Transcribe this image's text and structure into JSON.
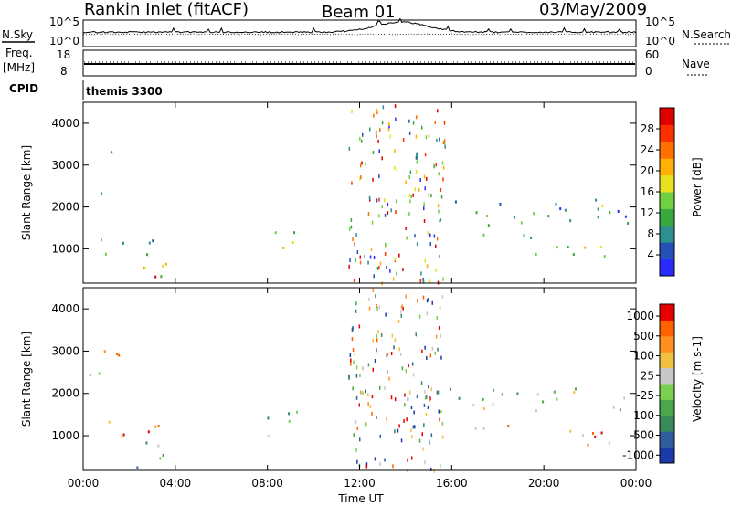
{
  "header": {
    "station": "Rankin Inlet (fitACF)",
    "beam": "Beam 01",
    "date": "03/May/2009"
  },
  "panels": {
    "nsky_label": "N.Sky",
    "nsky_ticks": [
      "10^5",
      "10^0"
    ],
    "nsearch_label": "N.Search",
    "nsearch_ticks": [
      "10^5",
      "10^0"
    ],
    "freq_label_1": "Freq.",
    "freq_label_2": "[MHz]",
    "freq_ticks": [
      "18",
      "8"
    ],
    "nave_label": "Nave",
    "nave_ticks": [
      "60",
      "0"
    ],
    "cpid_label": "CPID",
    "cpid_value": "themis 3300"
  },
  "chart_data": [
    {
      "type": "heatmap",
      "name": "power",
      "ylabel": "Slant Range [km]",
      "xlabel": "",
      "x_ticks": [
        "00:00",
        "04:00",
        "08:00",
        "12:00",
        "16:00",
        "20:00",
        "00:00"
      ],
      "y_ticks": [
        "1000",
        "2000",
        "3000",
        "4000"
      ],
      "ylim": [
        180,
        4500
      ],
      "colorbar_label": "Power [dB]",
      "colorbar_ticks": [
        "4",
        "8",
        "12",
        "16",
        "20",
        "24",
        "28"
      ],
      "colorbar_colors": [
        "#2a2aff",
        "#2450b8",
        "#2e8f8f",
        "#39a83e",
        "#70d040",
        "#e6e020",
        "#ffb000",
        "#ff7000",
        "#ff3000",
        "#e00000"
      ],
      "echo_regions": [
        {
          "t0": 0.3,
          "t1": 1.0,
          "r0": 2200,
          "r1": 2700,
          "level": 0.25
        },
        {
          "t0": 0.5,
          "t1": 1.2,
          "r0": 3000,
          "r1": 3500,
          "level": 0.15
        },
        {
          "t0": 0.2,
          "t1": 3.4,
          "r0": 800,
          "r1": 1300,
          "level": 0.35
        },
        {
          "t0": 2.2,
          "t1": 3.6,
          "r0": 200,
          "r1": 1200,
          "level": 0.55
        },
        {
          "t0": 2.9,
          "t1": 3.8,
          "r0": 180,
          "r1": 600,
          "level": 0.95
        },
        {
          "t0": 7.6,
          "t1": 9.4,
          "r0": 1000,
          "r1": 1600,
          "level": 0.55
        },
        {
          "t0": 15.4,
          "t1": 24.0,
          "r0": 1500,
          "r1": 2200,
          "level": 0.3
        },
        {
          "t0": 19.6,
          "t1": 24.0,
          "r0": 800,
          "r1": 1200,
          "level": 0.45
        },
        {
          "t0": 17.0,
          "t1": 20.0,
          "r0": 1200,
          "r1": 1500,
          "level": 0.25
        }
      ]
    },
    {
      "type": "heatmap",
      "name": "velocity",
      "ylabel": "Slant Range [km]",
      "xlabel": "Time UT",
      "x_ticks": [
        "00:00",
        "04:00",
        "08:00",
        "12:00",
        "16:00",
        "20:00",
        "00:00"
      ],
      "y_ticks": [
        "1000",
        "2000",
        "3000",
        "4000"
      ],
      "ylim": [
        180,
        4500
      ],
      "colorbar_label": "Velocity [m s-1]",
      "colorbar_ticks": [
        "1000",
        "500",
        "100",
        "25",
        "-25",
        "-100",
        "-500",
        "-1000"
      ],
      "colorbar_colors": [
        "#1a3aa8",
        "#2e5e9e",
        "#3a8a5a",
        "#4aa84a",
        "#7ad050",
        "#c8c8c8",
        "#f0c040",
        "#ff9020",
        "#ff6000",
        "#e80000"
      ],
      "echo_regions": [
        {
          "t0": 0.2,
          "t1": 1.0,
          "r0": 2200,
          "r1": 2700,
          "level": 0.5
        },
        {
          "t0": 0.5,
          "t1": 1.6,
          "r0": 2900,
          "r1": 3500,
          "level": 0.75
        },
        {
          "t0": 0.8,
          "t1": 3.4,
          "r0": 800,
          "r1": 1400,
          "level": 0.75
        },
        {
          "t0": 2.2,
          "t1": 3.6,
          "r0": 200,
          "r1": 1200,
          "level": 0.35
        },
        {
          "t0": 7.6,
          "t1": 9.4,
          "r0": 1000,
          "r1": 1700,
          "level": 0.3
        },
        {
          "t0": 15.4,
          "t1": 24.0,
          "r0": 1600,
          "r1": 2200,
          "level": 0.5
        },
        {
          "t0": 19.6,
          "t1": 24.0,
          "r0": 800,
          "r1": 1200,
          "level": 0.8
        },
        {
          "t0": 17.0,
          "t1": 20.0,
          "r0": 1200,
          "r1": 1500,
          "level": 0.7
        }
      ]
    }
  ]
}
